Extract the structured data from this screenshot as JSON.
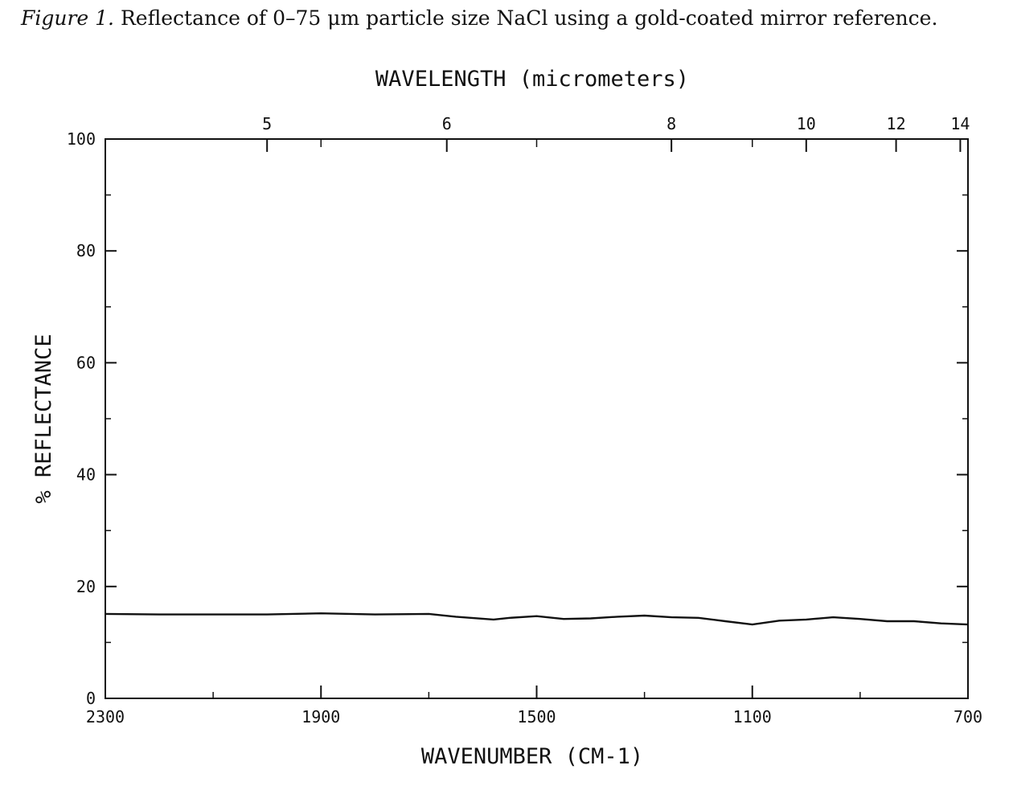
{
  "caption": {
    "label": "Figure 1.",
    "text": "Reflectance of 0–75 μm particle size NaCl using a gold-coated mirror reference."
  },
  "chart_data": {
    "type": "line",
    "title": "",
    "xlabel": "WAVENUMBER (CM-1)",
    "ylabel": "% REFLECTANCE",
    "x2label": "WAVELENGTH (micrometers)",
    "xlim": [
      2300,
      700
    ],
    "ylim": [
      0,
      100
    ],
    "x_ticks": [
      "2300",
      "1900",
      "1500",
      "1100",
      "700"
    ],
    "y_ticks": [
      "0",
      "20",
      "40",
      "60",
      "80",
      "100"
    ],
    "x2_ticks": [
      "5",
      "6",
      "8",
      "10",
      "12",
      "14"
    ],
    "x2_tick_values": [
      5,
      6,
      8,
      10,
      12,
      14
    ],
    "grid": false,
    "series": [
      {
        "x": [
          2300,
          2200,
          2100,
          2000,
          1900,
          1800,
          1700,
          1650,
          1580,
          1550,
          1500,
          1450,
          1400,
          1350,
          1300,
          1250,
          1200,
          1150,
          1100,
          1050,
          1000,
          950,
          900,
          850,
          800,
          750,
          700
        ],
        "y": [
          15.1,
          15.0,
          15.0,
          15.0,
          15.2,
          15.0,
          15.1,
          14.6,
          14.1,
          14.4,
          14.7,
          14.2,
          14.3,
          14.6,
          14.8,
          14.5,
          14.4,
          13.8,
          13.2,
          13.9,
          14.1,
          14.5,
          14.2,
          13.8,
          13.8,
          13.4,
          13.2
        ]
      }
    ]
  }
}
